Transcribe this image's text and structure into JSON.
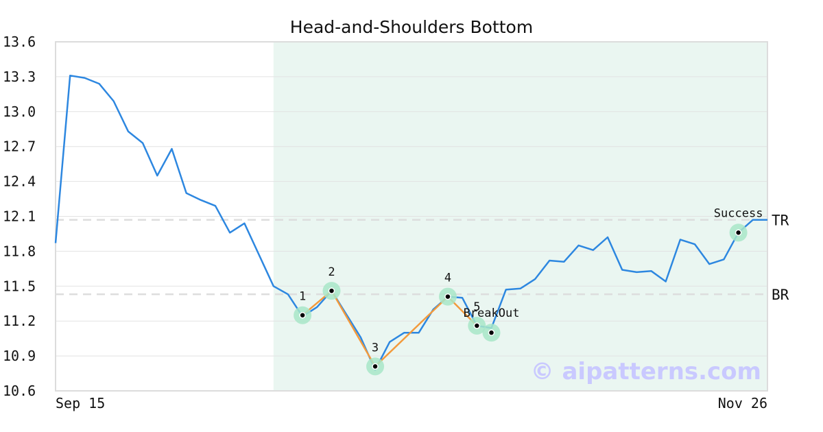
{
  "chart_data": {
    "type": "line",
    "title": "Head-and-Shoulders Bottom",
    "xlabel": "",
    "ylabel": "",
    "ylim": [
      10.6,
      13.6
    ],
    "y_ticks": [
      "13.6",
      "13.3",
      "13.0",
      "12.7",
      "12.4",
      "12.1",
      "11.8",
      "11.5",
      "11.2",
      "10.9",
      "10.6"
    ],
    "x_tick_labels": [
      {
        "label": "Sep 15",
        "index": 0
      },
      {
        "label": "Nov 26",
        "index": 49
      }
    ],
    "grid": "horizontal",
    "values": [
      11.87,
      13.31,
      13.29,
      13.24,
      13.09,
      12.83,
      12.73,
      12.45,
      12.68,
      12.3,
      12.24,
      12.19,
      11.96,
      12.04,
      11.77,
      11.5,
      11.43,
      11.24,
      11.32,
      11.46,
      11.26,
      11.06,
      10.78,
      11.02,
      11.1,
      11.1,
      11.3,
      11.41,
      11.4,
      11.16,
      11.14,
      11.47,
      11.48,
      11.56,
      11.72,
      11.71,
      11.85,
      11.81,
      11.92,
      11.64,
      11.62,
      11.63,
      11.54,
      11.9,
      11.86,
      11.69,
      11.73,
      11.96,
      12.07,
      12.07
    ],
    "highlight_range": {
      "start": 15,
      "end": 49,
      "color": "#eaf6f1"
    },
    "line_color": "#2d87e0",
    "pattern_color": "#f39a3c",
    "marker_color": "#a8e6c8",
    "pattern_points": [
      {
        "label": "1",
        "index": 17,
        "value": 11.25
      },
      {
        "label": "2",
        "index": 19,
        "value": 11.46
      },
      {
        "label": "3",
        "index": 22,
        "value": 10.81
      },
      {
        "label": "4",
        "index": 27,
        "value": 11.41
      },
      {
        "label": "5",
        "index": 29,
        "value": 11.16
      }
    ],
    "events": [
      {
        "label": "BreakOut",
        "index": 30,
        "value": 11.1
      },
      {
        "label": "Success",
        "index": 47,
        "value": 11.96
      }
    ],
    "levels": [
      {
        "label": "TR",
        "value": 12.07
      },
      {
        "label": "BR",
        "value": 11.43
      }
    ],
    "watermark": "© aipatterns.com"
  }
}
